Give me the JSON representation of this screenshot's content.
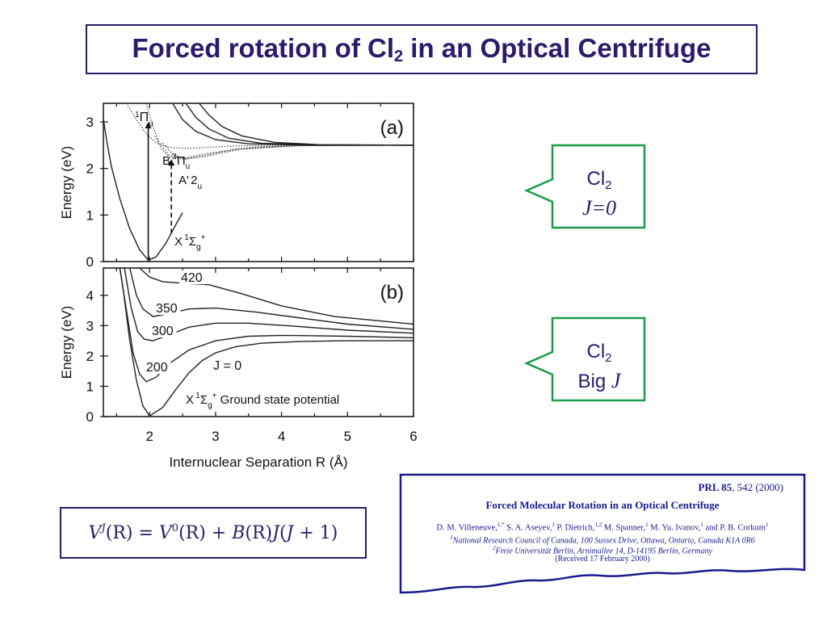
{
  "title": {
    "main": "Forced rotation of Cl",
    "sub": "2",
    "rest": " in an Optical Centrifuge"
  },
  "chart_data": [
    {
      "type": "line",
      "panel_label": "(a)",
      "ylabel": "Energy (eV)",
      "ylim": [
        0,
        3.4
      ],
      "yticks": [
        "0",
        "1",
        "2",
        "3"
      ],
      "xlim": [
        1.3,
        6
      ],
      "labels": {
        "pi_u_top": {
          "sup": "1",
          "main": "Π",
          "sub": "u"
        },
        "b_state": {
          "main": "B",
          "sup": "3",
          "greek": "Π",
          "sub": "u"
        },
        "a_state": {
          "main": "A'",
          "num": "2",
          "sub": "u"
        },
        "x_state": {
          "main": "X",
          "sup": "1",
          "greek": "Σ",
          "sub": "g",
          "sup2": "+"
        }
      },
      "series": [
        {
          "style": "solid",
          "points": [
            [
              1.28,
              3.25
            ],
            [
              1.35,
              2.6
            ],
            [
              1.42,
              2.05
            ],
            [
              1.55,
              1.35
            ],
            [
              1.7,
              0.7
            ],
            [
              1.85,
              0.25
            ],
            [
              1.98,
              0.03
            ],
            [
              2.1,
              0.1
            ],
            [
              2.25,
              0.4
            ],
            [
              2.4,
              0.8
            ],
            [
              2.5,
              1.05
            ]
          ]
        },
        {
          "style": "solid",
          "points": [
            [
              2.35,
              3.4
            ],
            [
              2.5,
              3.05
            ],
            [
              2.7,
              2.8
            ],
            [
              3.0,
              2.62
            ],
            [
              3.5,
              2.53
            ],
            [
              4.5,
              2.5
            ],
            [
              6,
              2.5
            ]
          ]
        },
        {
          "style": "solid",
          "points": [
            [
              2.55,
              3.4
            ],
            [
              2.7,
              3.1
            ],
            [
              2.9,
              2.85
            ],
            [
              3.2,
              2.65
            ],
            [
              3.7,
              2.54
            ],
            [
              4.5,
              2.51
            ],
            [
              6,
              2.5
            ]
          ]
        },
        {
          "style": "solid",
          "points": [
            [
              2.75,
              3.4
            ],
            [
              2.9,
              3.15
            ],
            [
              3.1,
              2.9
            ],
            [
              3.4,
              2.7
            ],
            [
              3.9,
              2.56
            ],
            [
              4.6,
              2.51
            ],
            [
              6,
              2.5
            ]
          ]
        },
        {
          "style": "dotted",
          "points": [
            [
              1.65,
              3.4
            ],
            [
              1.8,
              3.05
            ],
            [
              1.95,
              2.75
            ],
            [
              2.1,
              2.55
            ],
            [
              2.3,
              2.45
            ],
            [
              2.6,
              2.43
            ],
            [
              3.2,
              2.48
            ],
            [
              4.0,
              2.5
            ],
            [
              6,
              2.5
            ]
          ]
        },
        {
          "style": "dotted",
          "points": [
            [
              1.95,
              3.4
            ],
            [
              2.05,
              2.9
            ],
            [
              2.15,
              2.55
            ],
            [
              2.3,
              2.28
            ],
            [
              2.5,
              2.22
            ],
            [
              2.9,
              2.33
            ],
            [
              3.6,
              2.46
            ],
            [
              4.5,
              2.5
            ],
            [
              6,
              2.5
            ]
          ]
        },
        {
          "style": "dotted",
          "points": [
            [
              2.08,
              2.7
            ],
            [
              2.18,
              2.42
            ],
            [
              2.3,
              2.25
            ],
            [
              2.5,
              2.2
            ],
            [
              2.8,
              2.27
            ],
            [
              3.3,
              2.42
            ],
            [
              4.2,
              2.49
            ],
            [
              6,
              2.5
            ]
          ]
        },
        {
          "style": "dotted",
          "points": [
            [
              2.2,
              2.55
            ],
            [
              2.35,
              2.3
            ],
            [
              2.55,
              2.2
            ],
            [
              2.85,
              2.26
            ],
            [
              3.4,
              2.42
            ],
            [
              4.3,
              2.49
            ],
            [
              6,
              2.5
            ]
          ]
        }
      ],
      "arrows": [
        {
          "style": "solid",
          "x": 1.98,
          "y_from": 0.02,
          "y_to": 3.0
        },
        {
          "style": "dashed",
          "x": 2.33,
          "y_from": 0.6,
          "y_to": 2.2
        }
      ]
    },
    {
      "type": "line",
      "panel_label": "(b)",
      "ylabel": "Energy (eV)",
      "xlabel": "Internuclear Separation R (Å)",
      "ylim": [
        0,
        4.9
      ],
      "xlim": [
        1.3,
        6
      ],
      "x": [
        2,
        3,
        4,
        5,
        6
      ],
      "xticks": [
        "2",
        "3",
        "4",
        "5",
        "6"
      ],
      "yticks": [
        "0",
        "1",
        "2",
        "3",
        "4"
      ],
      "annotation": {
        "x_prefix": "X",
        "sup": "1",
        "greek": "Σ",
        "sub": "g",
        "sup2": "+",
        "text": "Ground state potential"
      },
      "series": [
        {
          "name": "J = 0",
          "points": [
            [
              1.55,
              4.9
            ],
            [
              1.6,
              4.2
            ],
            [
              1.7,
              2.5
            ],
            [
              1.8,
              1.2
            ],
            [
              1.9,
              0.35
            ],
            [
              2.0,
              0.02
            ],
            [
              2.2,
              0.3
            ],
            [
              2.4,
              0.9
            ],
            [
              2.6,
              1.45
            ],
            [
              2.8,
              1.85
            ],
            [
              3.0,
              2.1
            ],
            [
              3.3,
              2.3
            ],
            [
              3.7,
              2.42
            ],
            [
              4.3,
              2.48
            ],
            [
              5,
              2.5
            ],
            [
              6,
              2.5
            ]
          ]
        },
        {
          "name": "200",
          "points": [
            [
              1.55,
              4.9
            ],
            [
              1.65,
              3.5
            ],
            [
              1.75,
              2.1
            ],
            [
              1.85,
              1.4
            ],
            [
              1.95,
              1.15
            ],
            [
              2.1,
              1.3
            ],
            [
              2.3,
              1.75
            ],
            [
              2.6,
              2.2
            ],
            [
              3.0,
              2.5
            ],
            [
              3.5,
              2.65
            ],
            [
              4.0,
              2.68
            ],
            [
              5,
              2.65
            ],
            [
              6,
              2.6
            ]
          ]
        },
        {
          "name": "300",
          "points": [
            [
              1.62,
              4.9
            ],
            [
              1.72,
              3.6
            ],
            [
              1.82,
              2.8
            ],
            [
              1.92,
              2.55
            ],
            [
              2.05,
              2.5
            ],
            [
              2.3,
              2.7
            ],
            [
              2.6,
              2.95
            ],
            [
              3.0,
              3.08
            ],
            [
              3.5,
              3.08
            ],
            [
              4.2,
              2.98
            ],
            [
              5,
              2.85
            ],
            [
              6,
              2.75
            ]
          ]
        },
        {
          "name": "350",
          "points": [
            [
              1.7,
              4.9
            ],
            [
              1.8,
              4.0
            ],
            [
              1.9,
              3.55
            ],
            [
              2.05,
              3.3
            ],
            [
              2.3,
              3.4
            ],
            [
              2.6,
              3.55
            ],
            [
              3.0,
              3.58
            ],
            [
              3.6,
              3.45
            ],
            [
              4.3,
              3.25
            ],
            [
              5,
              3.05
            ],
            [
              6,
              2.88
            ]
          ]
        },
        {
          "name": "420",
          "points": [
            [
              1.85,
              4.9
            ],
            [
              2.0,
              4.6
            ],
            [
              2.2,
              4.45
            ],
            [
              2.5,
              4.4
            ],
            [
              2.9,
              4.35
            ],
            [
              3.4,
              4.05
            ],
            [
              4.0,
              3.65
            ],
            [
              4.8,
              3.3
            ],
            [
              6,
              3.05
            ]
          ]
        }
      ]
    }
  ],
  "callouts": [
    {
      "species": "Cl",
      "sub": "2",
      "line2": "J=0"
    },
    {
      "species": "Cl",
      "sub": "2",
      "line2_prefix": "Big ",
      "line2_ital": "J"
    }
  ],
  "equation": {
    "V": "V",
    "J": "J",
    "lhs_rest": "(R) = ",
    "V0": "V",
    "zero": "0",
    "rhs": "(R) + ",
    "B": "B",
    "mid": "(R)",
    "J2": "J",
    "tail": "(",
    "J3": "J",
    "end": " + 1)"
  },
  "paper": {
    "journal": "PRL 85",
    "citation": ", 542 (2000)",
    "title": "Forced Molecular Rotation in an Optical Centrifuge",
    "authors": [
      {
        "name": "D. M. Villeneuve,",
        "sup": "1,*"
      },
      {
        "name": "S. A. Aseyev,",
        "sup": "1"
      },
      {
        "name": "P. Dietrich,",
        "sup": "1,2"
      },
      {
        "name": "M. Spanner,",
        "sup": "1"
      },
      {
        "name": "M. Yu. Ivanov,",
        "sup": "1"
      },
      {
        "name": "and P. B. Corkum",
        "sup": "1"
      }
    ],
    "affiliation1": {
      "sup": "1",
      "text": "National Research Council of Canada, 100 Sussex Drive, Ottawa, Ontario, Canada K1A 0R6"
    },
    "affiliation2": {
      "sup": "2",
      "text": "Freie Universität Berlin, Arnimallee 14, D-14195 Berlin, Germany"
    },
    "received": "(Received 17 February 2000)"
  },
  "colors": {
    "title": "#2d1a6b",
    "callout_border": "#1e9a4a",
    "paper_text": "#1a1a8c",
    "paper_border": "#1a1a8c"
  }
}
